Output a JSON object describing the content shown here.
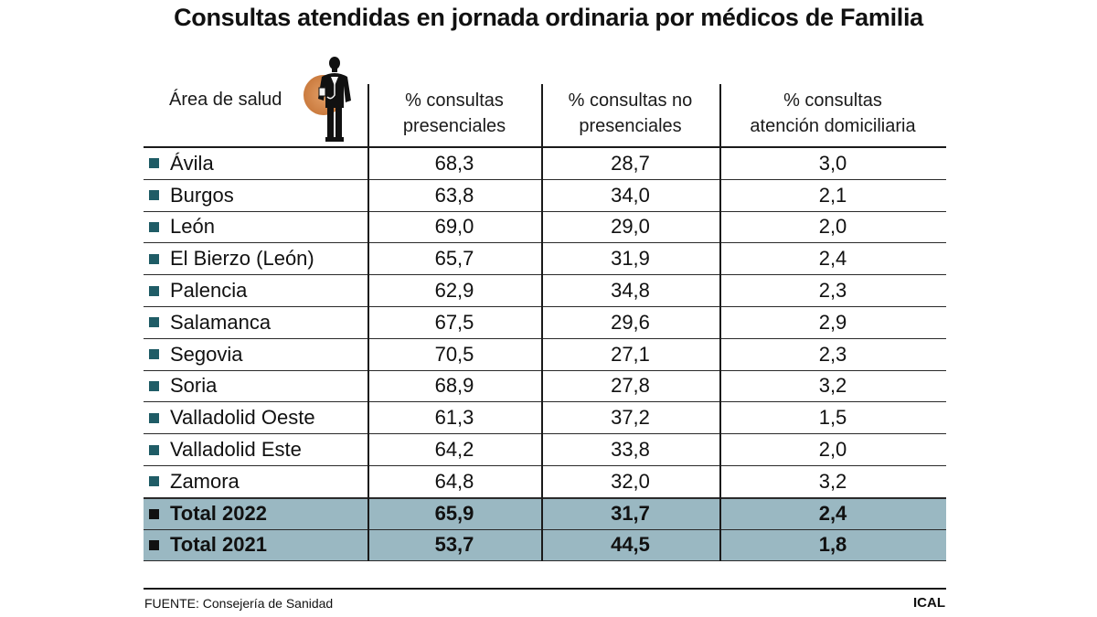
{
  "title": "Consultas atendidas en jornada ordinaria por médicos de Familia",
  "headers": {
    "area": "Área de salud",
    "presenciales": "% consultas presenciales",
    "no_presenciales": "% consultas no presenciales",
    "domiciliaria": "% consultas atención domiciliaria"
  },
  "header_lines": {
    "presenciales": [
      "% consultas",
      "presenciales"
    ],
    "no_presenciales": [
      "% consultas no",
      "presenciales"
    ],
    "domiciliaria": [
      "% consultas",
      "atención domiciliaria"
    ]
  },
  "rows": [
    {
      "area": "Ávila",
      "presenciales": "68,3",
      "no_presenciales": "28,7",
      "domiciliaria": "3,0"
    },
    {
      "area": "Burgos",
      "presenciales": "63,8",
      "no_presenciales": "34,0",
      "domiciliaria": "2,1"
    },
    {
      "area": "León",
      "presenciales": "69,0",
      "no_presenciales": "29,0",
      "domiciliaria": "2,0"
    },
    {
      "area": "El Bierzo (León)",
      "presenciales": "65,7",
      "no_presenciales": "31,9",
      "domiciliaria": "2,4"
    },
    {
      "area": "Palencia",
      "presenciales": "62,9",
      "no_presenciales": "34,8",
      "domiciliaria": "2,3"
    },
    {
      "area": "Salamanca",
      "presenciales": "67,5",
      "no_presenciales": "29,6",
      "domiciliaria": "2,9"
    },
    {
      "area": "Segovia",
      "presenciales": "70,5",
      "no_presenciales": "27,1",
      "domiciliaria": "2,3"
    },
    {
      "area": "Soria",
      "presenciales": "68,9",
      "no_presenciales": "27,8",
      "domiciliaria": "3,2"
    },
    {
      "area": "Valladolid Oeste",
      "presenciales": "61,3",
      "no_presenciales": "37,2",
      "domiciliaria": "1,5"
    },
    {
      "area": "Valladolid Este",
      "presenciales": "64,2",
      "no_presenciales": "33,8",
      "domiciliaria": "2,0"
    },
    {
      "area": "Zamora",
      "presenciales": "64,8",
      "no_presenciales": "32,0",
      "domiciliaria": "3,2"
    }
  ],
  "totals": [
    {
      "area": "Total 2022",
      "presenciales": "65,9",
      "no_presenciales": "31,7",
      "domiciliaria": "2,4"
    },
    {
      "area": "Total 2021",
      "presenciales": "53,7",
      "no_presenciales": "44,5",
      "domiciliaria": "1,8"
    }
  ],
  "source": "FUENTE: Consejería de Sanidad",
  "credit": "ICAL",
  "colors": {
    "row_bullet": "#1f5c66",
    "total_bullet": "#111111",
    "total_background": "#9ab8c2",
    "icon_circle": "#d98a4a"
  },
  "icons": {
    "header": "doctor-figure-icon"
  }
}
